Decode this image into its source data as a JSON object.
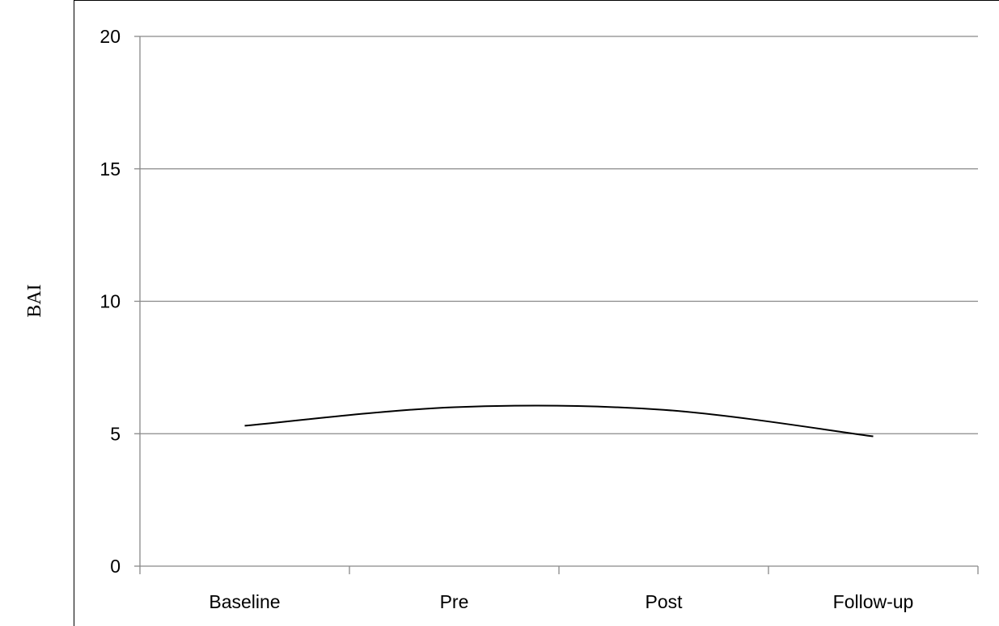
{
  "chart_data": {
    "type": "line",
    "title": "",
    "xlabel": "",
    "ylabel": "BAI",
    "categories": [
      "Baseline",
      "Pre",
      "Post",
      "Follow-up"
    ],
    "series": [
      {
        "values": [
          5.3,
          6.0,
          5.9,
          4.9
        ],
        "color": "#000000",
        "smoothed": true
      }
    ],
    "ylim": [
      0,
      20
    ],
    "yticks": [
      "0",
      "5",
      "10",
      "15",
      "20"
    ],
    "grid": true,
    "legend": "none"
  }
}
